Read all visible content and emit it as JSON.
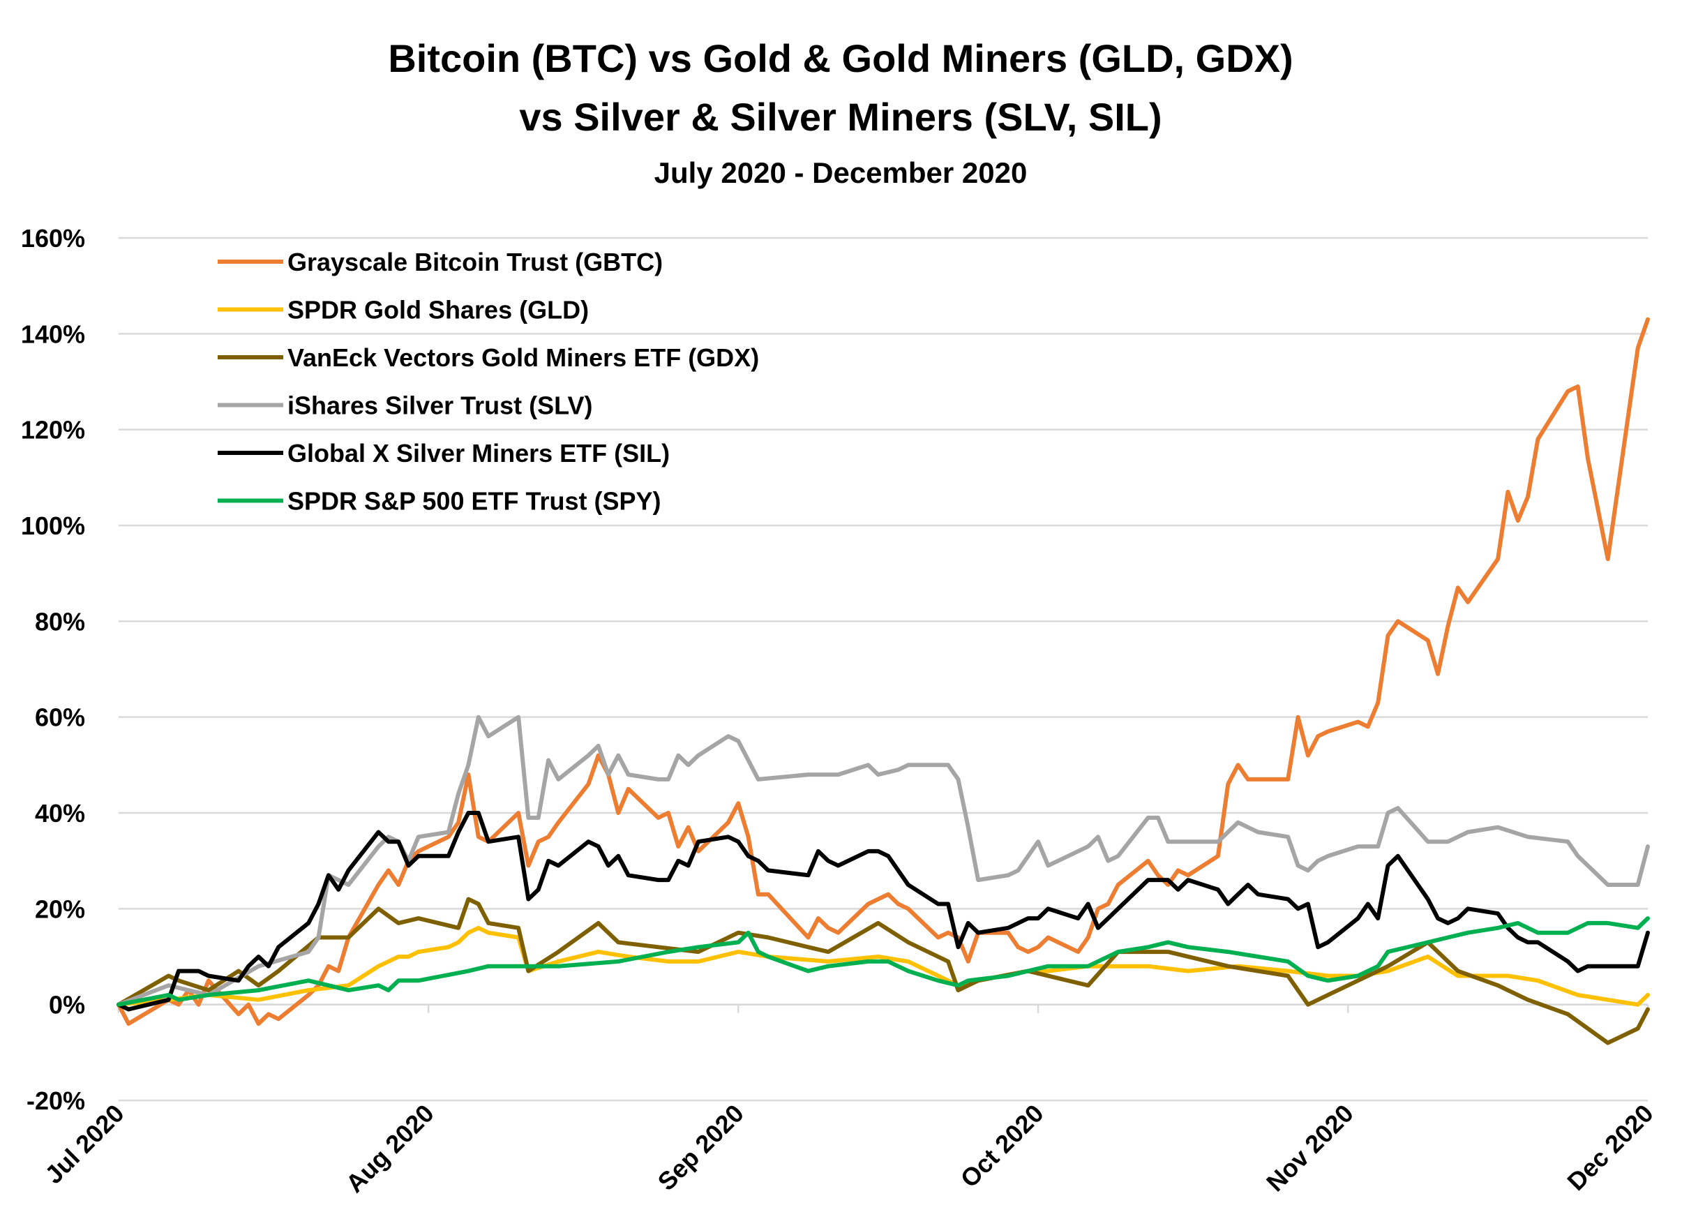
{
  "chart_data": {
    "type": "line",
    "title_line1": "Bitcoin (BTC) vs Gold & Gold Miners (GLD, GDX)",
    "title_line2": "vs Silver & Silver Miners (SLV, SIL)",
    "subtitle": "July 2020 - December 2020",
    "xlabel": "",
    "ylabel": "",
    "ylim": [
      -20,
      160
    ],
    "y_ticks": [
      -20,
      0,
      20,
      40,
      60,
      80,
      100,
      120,
      140,
      160
    ],
    "y_tick_labels": [
      "-20%",
      "0%",
      "20%",
      "40%",
      "60%",
      "80%",
      "100%",
      "120%",
      "140%",
      "160%"
    ],
    "xlim": [
      "2020-07-01",
      "2020-12-01"
    ],
    "x_ticks": [
      "2020-07-01",
      "2020-08-01",
      "2020-09-01",
      "2020-10-01",
      "2020-11-01",
      "2020-12-01"
    ],
    "x_tick_labels": [
      "Jul 2020",
      "Aug 2020",
      "Sep 2020",
      "Oct 2020",
      "Nov 2020",
      "Dec 2020"
    ],
    "grid": true,
    "legend_position": "top-left",
    "series": [
      {
        "name": "Grayscale Bitcoin Trust (GBTC)",
        "color": "#ED7D31",
        "x": [
          "2020-07-01",
          "2020-07-02",
          "2020-07-06",
          "2020-07-07",
          "2020-07-08",
          "2020-07-09",
          "2020-07-10",
          "2020-07-13",
          "2020-07-14",
          "2020-07-15",
          "2020-07-16",
          "2020-07-17",
          "2020-07-20",
          "2020-07-21",
          "2020-07-22",
          "2020-07-23",
          "2020-07-24",
          "2020-07-27",
          "2020-07-28",
          "2020-07-29",
          "2020-07-30",
          "2020-07-31",
          "2020-08-03",
          "2020-08-04",
          "2020-08-05",
          "2020-08-06",
          "2020-08-07",
          "2020-08-10",
          "2020-08-11",
          "2020-08-12",
          "2020-08-13",
          "2020-08-14",
          "2020-08-17",
          "2020-08-18",
          "2020-08-19",
          "2020-08-20",
          "2020-08-21",
          "2020-08-24",
          "2020-08-25",
          "2020-08-26",
          "2020-08-27",
          "2020-08-28",
          "2020-08-31",
          "2020-09-01",
          "2020-09-02",
          "2020-09-03",
          "2020-09-04",
          "2020-09-08",
          "2020-09-09",
          "2020-09-10",
          "2020-09-11",
          "2020-09-14",
          "2020-09-15",
          "2020-09-16",
          "2020-09-17",
          "2020-09-18",
          "2020-09-21",
          "2020-09-22",
          "2020-09-23",
          "2020-09-24",
          "2020-09-25",
          "2020-09-28",
          "2020-09-29",
          "2020-09-30",
          "2020-10-01",
          "2020-10-02",
          "2020-10-05",
          "2020-10-06",
          "2020-10-07",
          "2020-10-08",
          "2020-10-09",
          "2020-10-12",
          "2020-10-13",
          "2020-10-14",
          "2020-10-15",
          "2020-10-16",
          "2020-10-19",
          "2020-10-20",
          "2020-10-21",
          "2020-10-22",
          "2020-10-23",
          "2020-10-26",
          "2020-10-27",
          "2020-10-28",
          "2020-10-29",
          "2020-10-30",
          "2020-11-02",
          "2020-11-03",
          "2020-11-04",
          "2020-11-05",
          "2020-11-06",
          "2020-11-09",
          "2020-11-10",
          "2020-11-11",
          "2020-11-12",
          "2020-11-13",
          "2020-11-16",
          "2020-11-17",
          "2020-11-18",
          "2020-11-19",
          "2020-11-20",
          "2020-11-23",
          "2020-11-24",
          "2020-11-25",
          "2020-11-27",
          "2020-11-30",
          "2020-12-01"
        ],
        "values": [
          0,
          -4,
          1,
          0,
          3,
          0,
          5,
          -2,
          0,
          -4,
          -2,
          -3,
          2,
          4,
          8,
          7,
          14,
          25,
          28,
          25,
          30,
          32,
          35,
          38,
          48,
          35,
          34,
          40,
          29,
          34,
          35,
          38,
          46,
          52,
          48,
          40,
          45,
          39,
          40,
          33,
          37,
          32,
          38,
          42,
          35,
          23,
          23,
          14,
          18,
          16,
          15,
          21,
          22,
          23,
          21,
          20,
          14,
          15,
          14,
          9,
          15,
          15,
          12,
          11,
          12,
          14,
          11,
          14,
          20,
          21,
          25,
          30,
          27,
          25,
          28,
          27,
          31,
          46,
          50,
          47,
          47,
          47,
          60,
          52,
          56,
          57,
          59,
          58,
          63,
          77,
          80,
          76,
          69,
          79,
          87,
          84,
          93,
          107,
          101,
          106,
          118,
          128,
          129,
          114,
          93,
          137,
          143
        ]
      },
      {
        "name": "SPDR Gold Shares (GLD)",
        "color": "#FFC000",
        "x": [
          "2020-07-01",
          "2020-07-06",
          "2020-07-10",
          "2020-07-15",
          "2020-07-20",
          "2020-07-24",
          "2020-07-27",
          "2020-07-28",
          "2020-07-29",
          "2020-07-30",
          "2020-07-31",
          "2020-08-03",
          "2020-08-04",
          "2020-08-05",
          "2020-08-06",
          "2020-08-07",
          "2020-08-10",
          "2020-08-11",
          "2020-08-14",
          "2020-08-18",
          "2020-08-21",
          "2020-08-25",
          "2020-08-28",
          "2020-09-01",
          "2020-09-04",
          "2020-09-10",
          "2020-09-15",
          "2020-09-18",
          "2020-09-23",
          "2020-09-25",
          "2020-09-30",
          "2020-10-02",
          "2020-10-06",
          "2020-10-12",
          "2020-10-16",
          "2020-10-21",
          "2020-10-26",
          "2020-10-30",
          "2020-11-02",
          "2020-11-05",
          "2020-11-09",
          "2020-11-12",
          "2020-11-17",
          "2020-11-20",
          "2020-11-24",
          "2020-11-27",
          "2020-11-30",
          "2020-12-01"
        ],
        "values": [
          0,
          1,
          2,
          1,
          3,
          4,
          8,
          9,
          10,
          10,
          11,
          12,
          13,
          15,
          16,
          15,
          14,
          7,
          9,
          11,
          10,
          9,
          9,
          11,
          10,
          9,
          10,
          9,
          4,
          5,
          7,
          7,
          8,
          8,
          7,
          8,
          7,
          6,
          6,
          7,
          10,
          6,
          6,
          5,
          2,
          1,
          0,
          2
        ]
      },
      {
        "name": "VanEck Vectors Gold Miners ETF (GDX)",
        "color": "#7F6000",
        "x": [
          "2020-07-01",
          "2020-07-06",
          "2020-07-07",
          "2020-07-10",
          "2020-07-13",
          "2020-07-15",
          "2020-07-17",
          "2020-07-21",
          "2020-07-24",
          "2020-07-27",
          "2020-07-29",
          "2020-07-31",
          "2020-08-04",
          "2020-08-05",
          "2020-08-06",
          "2020-08-07",
          "2020-08-10",
          "2020-08-11",
          "2020-08-14",
          "2020-08-18",
          "2020-08-20",
          "2020-08-24",
          "2020-08-28",
          "2020-09-01",
          "2020-09-04",
          "2020-09-08",
          "2020-09-10",
          "2020-09-15",
          "2020-09-18",
          "2020-09-22",
          "2020-09-23",
          "2020-09-25",
          "2020-09-30",
          "2020-10-06",
          "2020-10-09",
          "2020-10-14",
          "2020-10-20",
          "2020-10-26",
          "2020-10-28",
          "2020-10-30",
          "2020-11-02",
          "2020-11-05",
          "2020-11-09",
          "2020-11-12",
          "2020-11-16",
          "2020-11-19",
          "2020-11-23",
          "2020-11-27",
          "2020-11-30",
          "2020-12-01"
        ],
        "values": [
          0,
          6,
          5,
          3,
          7,
          4,
          7,
          14,
          14,
          20,
          17,
          18,
          16,
          22,
          21,
          17,
          16,
          7,
          11,
          17,
          13,
          12,
          11,
          15,
          14,
          12,
          11,
          17,
          13,
          9,
          3,
          5,
          7,
          4,
          11,
          11,
          8,
          6,
          0,
          2,
          5,
          8,
          13,
          7,
          4,
          1,
          -2,
          -8,
          -5,
          -1
        ]
      },
      {
        "name": "iShares Silver Trust (SLV)",
        "color": "#A5A5A5",
        "x": [
          "2020-07-01",
          "2020-07-06",
          "2020-07-10",
          "2020-07-15",
          "2020-07-20",
          "2020-07-21",
          "2020-07-22",
          "2020-07-24",
          "2020-07-27",
          "2020-07-28",
          "2020-07-29",
          "2020-07-30",
          "2020-07-31",
          "2020-08-03",
          "2020-08-04",
          "2020-08-05",
          "2020-08-06",
          "2020-08-07",
          "2020-08-10",
          "2020-08-11",
          "2020-08-12",
          "2020-08-13",
          "2020-08-14",
          "2020-08-17",
          "2020-08-18",
          "2020-08-19",
          "2020-08-20",
          "2020-08-21",
          "2020-08-24",
          "2020-08-25",
          "2020-08-26",
          "2020-08-27",
          "2020-08-28",
          "2020-08-31",
          "2020-09-01",
          "2020-09-02",
          "2020-09-03",
          "2020-09-08",
          "2020-09-10",
          "2020-09-11",
          "2020-09-14",
          "2020-09-15",
          "2020-09-17",
          "2020-09-18",
          "2020-09-21",
          "2020-09-22",
          "2020-09-23",
          "2020-09-24",
          "2020-09-25",
          "2020-09-28",
          "2020-09-29",
          "2020-09-30",
          "2020-10-01",
          "2020-10-02",
          "2020-10-05",
          "2020-10-06",
          "2020-10-07",
          "2020-10-08",
          "2020-10-09",
          "2020-10-12",
          "2020-10-13",
          "2020-10-14",
          "2020-10-15",
          "2020-10-16",
          "2020-10-19",
          "2020-10-21",
          "2020-10-22",
          "2020-10-23",
          "2020-10-26",
          "2020-10-27",
          "2020-10-28",
          "2020-10-29",
          "2020-10-30",
          "2020-11-02",
          "2020-11-04",
          "2020-11-05",
          "2020-11-06",
          "2020-11-09",
          "2020-11-11",
          "2020-11-13",
          "2020-11-16",
          "2020-11-19",
          "2020-11-23",
          "2020-11-24",
          "2020-11-25",
          "2020-11-27",
          "2020-11-30",
          "2020-12-01"
        ],
        "values": [
          0,
          4,
          2,
          8,
          11,
          14,
          27,
          25,
          33,
          35,
          34,
          30,
          35,
          36,
          44,
          50,
          60,
          56,
          60,
          39,
          39,
          51,
          47,
          52,
          54,
          48,
          52,
          48,
          47,
          47,
          52,
          50,
          52,
          56,
          55,
          51,
          47,
          48,
          48,
          48,
          50,
          48,
          49,
          50,
          50,
          50,
          47,
          37,
          26,
          27,
          28,
          31,
          34,
          29,
          32,
          33,
          35,
          30,
          31,
          39,
          39,
          34,
          34,
          34,
          34,
          38,
          37,
          36,
          35,
          29,
          28,
          30,
          31,
          33,
          33,
          40,
          41,
          34,
          34,
          36,
          37,
          35,
          34,
          31,
          29,
          25,
          25,
          33
        ]
      },
      {
        "name": "Global X Silver Miners ETF (SIL)",
        "color": "#000000",
        "x": [
          "2020-07-01",
          "2020-07-02",
          "2020-07-06",
          "2020-07-07",
          "2020-07-09",
          "2020-07-10",
          "2020-07-13",
          "2020-07-14",
          "2020-07-15",
          "2020-07-16",
          "2020-07-17",
          "2020-07-20",
          "2020-07-21",
          "2020-07-22",
          "2020-07-23",
          "2020-07-24",
          "2020-07-27",
          "2020-07-28",
          "2020-07-29",
          "2020-07-30",
          "2020-07-31",
          "2020-08-03",
          "2020-08-04",
          "2020-08-05",
          "2020-08-06",
          "2020-08-07",
          "2020-08-10",
          "2020-08-11",
          "2020-08-12",
          "2020-08-13",
          "2020-08-14",
          "2020-08-17",
          "2020-08-18",
          "2020-08-19",
          "2020-08-20",
          "2020-08-21",
          "2020-08-24",
          "2020-08-25",
          "2020-08-26",
          "2020-08-27",
          "2020-08-28",
          "2020-08-31",
          "2020-09-01",
          "2020-09-02",
          "2020-09-03",
          "2020-09-04",
          "2020-09-08",
          "2020-09-09",
          "2020-09-10",
          "2020-09-11",
          "2020-09-14",
          "2020-09-15",
          "2020-09-16",
          "2020-09-17",
          "2020-09-18",
          "2020-09-21",
          "2020-09-22",
          "2020-09-23",
          "2020-09-24",
          "2020-09-25",
          "2020-09-28",
          "2020-09-29",
          "2020-09-30",
          "2020-10-01",
          "2020-10-02",
          "2020-10-05",
          "2020-10-06",
          "2020-10-07",
          "2020-10-08",
          "2020-10-09",
          "2020-10-12",
          "2020-10-13",
          "2020-10-14",
          "2020-10-15",
          "2020-10-16",
          "2020-10-19",
          "2020-10-20",
          "2020-10-21",
          "2020-10-22",
          "2020-10-23",
          "2020-10-26",
          "2020-10-27",
          "2020-10-28",
          "2020-10-29",
          "2020-10-30",
          "2020-11-02",
          "2020-11-03",
          "2020-11-04",
          "2020-11-05",
          "2020-11-06",
          "2020-11-09",
          "2020-11-10",
          "2020-11-11",
          "2020-11-12",
          "2020-11-13",
          "2020-11-16",
          "2020-11-17",
          "2020-11-18",
          "2020-11-19",
          "2020-11-20",
          "2020-11-23",
          "2020-11-24",
          "2020-11-25",
          "2020-11-27",
          "2020-11-30",
          "2020-12-01"
        ],
        "values": [
          0,
          -1,
          1,
          7,
          7,
          6,
          5,
          8,
          10,
          8,
          12,
          17,
          21,
          27,
          24,
          28,
          36,
          34,
          34,
          29,
          31,
          31,
          36,
          40,
          40,
          34,
          35,
          22,
          24,
          30,
          29,
          34,
          33,
          29,
          31,
          27,
          26,
          26,
          30,
          29,
          34,
          35,
          34,
          31,
          30,
          28,
          27,
          32,
          30,
          29,
          32,
          32,
          31,
          28,
          25,
          21,
          21,
          12,
          17,
          15,
          16,
          17,
          18,
          18,
          20,
          18,
          21,
          16,
          18,
          20,
          26,
          26,
          26,
          24,
          26,
          24,
          21,
          23,
          25,
          23,
          22,
          20,
          21,
          12,
          13,
          18,
          21,
          18,
          29,
          31,
          22,
          18,
          17,
          18,
          20,
          19,
          16,
          14,
          13,
          13,
          9,
          7,
          8,
          8,
          8,
          15
        ]
      },
      {
        "name": "SPDR S&P 500 ETF Trust (SPY)",
        "color": "#00B050",
        "x": [
          "2020-07-01",
          "2020-07-06",
          "2020-07-07",
          "2020-07-10",
          "2020-07-15",
          "2020-07-20",
          "2020-07-22",
          "2020-07-24",
          "2020-07-27",
          "2020-07-28",
          "2020-07-29",
          "2020-07-31",
          "2020-08-05",
          "2020-08-07",
          "2020-08-11",
          "2020-08-14",
          "2020-08-20",
          "2020-08-25",
          "2020-08-28",
          "2020-09-01",
          "2020-09-02",
          "2020-09-03",
          "2020-09-04",
          "2020-09-08",
          "2020-09-10",
          "2020-09-14",
          "2020-09-16",
          "2020-09-18",
          "2020-09-21",
          "2020-09-23",
          "2020-09-24",
          "2020-09-28",
          "2020-09-30",
          "2020-10-02",
          "2020-10-06",
          "2020-10-09",
          "2020-10-12",
          "2020-10-14",
          "2020-10-16",
          "2020-10-20",
          "2020-10-23",
          "2020-10-26",
          "2020-10-28",
          "2020-10-30",
          "2020-11-02",
          "2020-11-04",
          "2020-11-05",
          "2020-11-09",
          "2020-11-11",
          "2020-11-13",
          "2020-11-16",
          "2020-11-18",
          "2020-11-20",
          "2020-11-23",
          "2020-11-25",
          "2020-11-27",
          "2020-11-30",
          "2020-12-01"
        ],
        "values": [
          0,
          2,
          1,
          2,
          3,
          5,
          4,
          3,
          4,
          3,
          5,
          5,
          7,
          8,
          8,
          8,
          9,
          11,
          12,
          13,
          15,
          11,
          10,
          7,
          8,
          9,
          9,
          7,
          5,
          4,
          5,
          6,
          7,
          8,
          8,
          11,
          12,
          13,
          12,
          11,
          10,
          9,
          6,
          5,
          6,
          8,
          11,
          13,
          14,
          15,
          16,
          17,
          15,
          15,
          17,
          17,
          16,
          18
        ]
      }
    ]
  }
}
